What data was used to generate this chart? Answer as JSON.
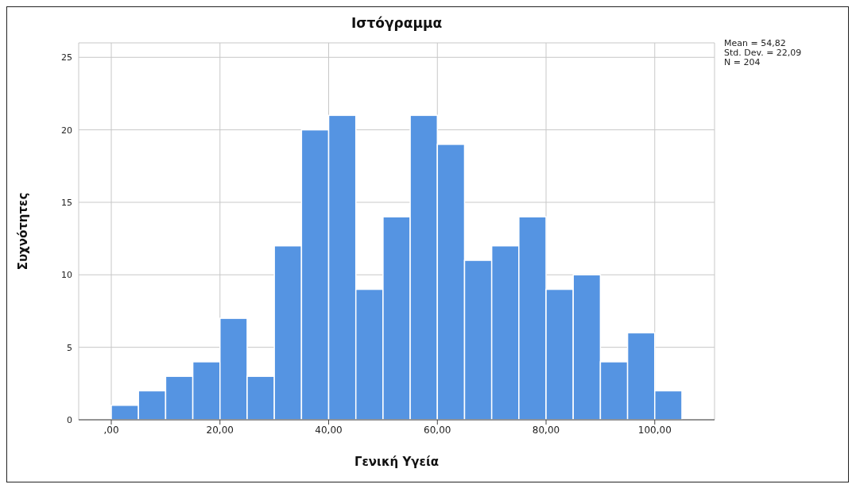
{
  "chart_data": {
    "type": "histogram",
    "title": "Ιστόγραμμα",
    "xlabel": "Γενική Υγεία",
    "ylabel": "Συχνότητες",
    "bins": [
      0,
      5,
      10,
      15,
      20,
      25,
      30,
      35,
      40,
      45,
      50,
      55,
      60,
      65,
      70,
      75,
      80,
      85,
      90,
      95,
      100,
      105
    ],
    "values": [
      1,
      2,
      3,
      4,
      7,
      3,
      12,
      20,
      21,
      9,
      14,
      21,
      19,
      11,
      12,
      14,
      9,
      10,
      4,
      6,
      2
    ],
    "color": "#5594e2",
    "xlim": [
      -6,
      111
    ],
    "xticks": [
      {
        "value": 0,
        "label": ",00"
      },
      {
        "value": 20,
        "label": "20,00"
      },
      {
        "value": 40,
        "label": "40,00"
      },
      {
        "value": 60,
        "label": "60,00"
      },
      {
        "value": 80,
        "label": "80,00"
      },
      {
        "value": 100,
        "label": "100,00"
      }
    ],
    "ylim": [
      0,
      26
    ],
    "yticks": [
      0,
      5,
      10,
      15,
      20,
      25
    ],
    "grid": true,
    "annotations": [
      "Mean = 54,82",
      "Std. Dev. = 22,09",
      "N = 204"
    ]
  }
}
